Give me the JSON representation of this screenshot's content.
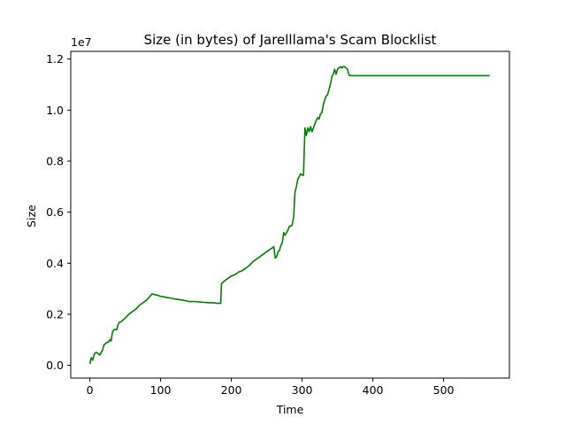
{
  "chart_data": {
    "type": "line",
    "title": "Size (in bytes) of Jarelllama's Scam Blocklist",
    "xlabel": "Time",
    "ylabel": "Size",
    "y_offset_label": "1e7",
    "xlim": [
      -27,
      593
    ],
    "ylim": [
      -0.05,
      1.23
    ],
    "y_scale_factor": 10000000,
    "x_ticks": [
      0,
      100,
      200,
      300,
      400,
      500
    ],
    "x_tick_labels": [
      "0",
      "100",
      "200",
      "300",
      "400",
      "500"
    ],
    "y_ticks": [
      0.0,
      0.2,
      0.4,
      0.6,
      0.8,
      1.0,
      1.2
    ],
    "y_tick_labels": [
      "0.0",
      "0.2",
      "0.4",
      "0.6",
      "0.8",
      "1.0",
      "1.2"
    ],
    "grid": false,
    "line_color": "#008000",
    "series": [
      {
        "x": [
          0,
          2,
          4,
          6,
          8,
          10,
          12,
          14,
          16,
          18,
          20,
          22,
          24,
          26,
          28,
          30,
          32,
          34,
          36,
          38,
          40,
          42,
          44,
          46,
          48,
          50,
          55,
          60,
          65,
          70,
          75,
          80,
          85,
          88,
          90,
          95,
          100,
          105,
          110,
          115,
          120,
          125,
          130,
          135,
          140,
          145,
          150,
          155,
          160,
          165,
          170,
          175,
          180,
          185,
          186,
          188,
          190,
          195,
          200,
          205,
          210,
          215,
          220,
          225,
          230,
          235,
          240,
          245,
          250,
          255,
          258,
          260,
          262,
          264,
          266,
          268,
          270,
          272,
          274,
          276,
          278,
          280,
          282,
          284,
          286,
          288,
          290,
          292,
          294,
          296,
          298,
          300,
          302,
          304,
          306,
          308,
          310,
          312,
          314,
          316,
          318,
          320,
          322,
          324,
          326,
          328,
          330,
          332,
          334,
          336,
          338,
          340,
          342,
          344,
          346,
          348,
          350,
          352,
          354,
          356,
          358,
          360,
          362,
          364,
          366,
          367,
          370,
          400,
          450,
          500,
          550,
          565
        ],
        "y": [
          0.005,
          0.03,
          0.02,
          0.04,
          0.05,
          0.05,
          0.045,
          0.04,
          0.05,
          0.06,
          0.08,
          0.085,
          0.09,
          0.09,
          0.1,
          0.095,
          0.13,
          0.14,
          0.14,
          0.14,
          0.16,
          0.17,
          0.17,
          0.175,
          0.18,
          0.185,
          0.2,
          0.21,
          0.22,
          0.235,
          0.245,
          0.255,
          0.27,
          0.28,
          0.278,
          0.275,
          0.27,
          0.268,
          0.265,
          0.263,
          0.26,
          0.258,
          0.256,
          0.253,
          0.25,
          0.25,
          0.25,
          0.248,
          0.247,
          0.246,
          0.245,
          0.245,
          0.243,
          0.243,
          0.32,
          0.325,
          0.33,
          0.34,
          0.35,
          0.355,
          0.365,
          0.37,
          0.38,
          0.39,
          0.405,
          0.415,
          0.425,
          0.435,
          0.445,
          0.455,
          0.46,
          0.465,
          0.42,
          0.425,
          0.445,
          0.45,
          0.47,
          0.48,
          0.52,
          0.51,
          0.52,
          0.53,
          0.545,
          0.545,
          0.55,
          0.58,
          0.68,
          0.7,
          0.73,
          0.74,
          0.75,
          0.745,
          0.745,
          0.93,
          0.9,
          0.93,
          0.915,
          0.935,
          0.915,
          0.93,
          0.945,
          0.96,
          0.97,
          0.965,
          0.985,
          0.99,
          1.02,
          1.04,
          1.055,
          1.06,
          1.08,
          1.1,
          1.13,
          1.14,
          1.16,
          1.14,
          1.16,
          1.165,
          1.17,
          1.165,
          1.17,
          1.17,
          1.165,
          1.16,
          1.14,
          1.135,
          1.135,
          1.135,
          1.135,
          1.135,
          1.135,
          1.135
        ]
      }
    ]
  }
}
